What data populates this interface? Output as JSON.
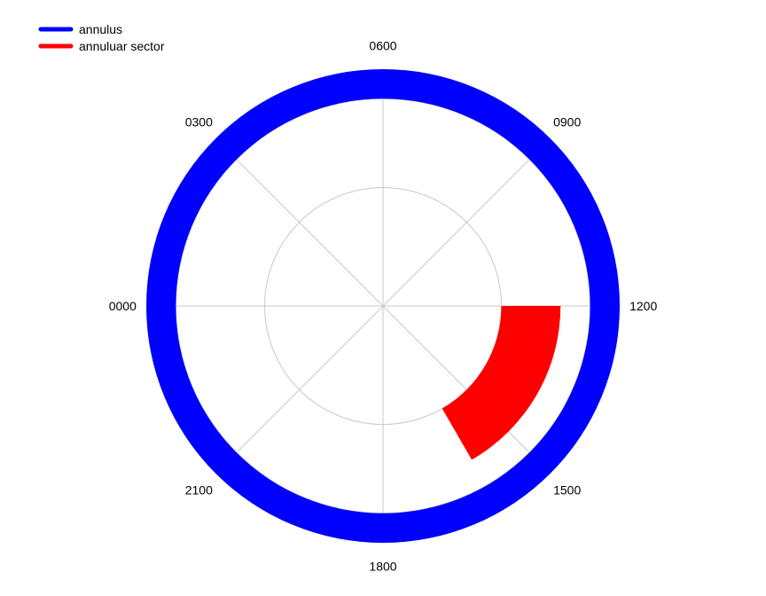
{
  "chart_data": {
    "type": "polar",
    "angular_axis": {
      "tick_labels": [
        "0000",
        "0300",
        "0600",
        "0900",
        "1200",
        "1500",
        "1800",
        "2100"
      ],
      "start_label_direction": "left",
      "direction": "clockwise",
      "range": [
        0,
        2400
      ]
    },
    "radial_axis": {
      "range": [
        0,
        1
      ],
      "grid_circles": [
        0.5
      ],
      "outer_circle": 0.875,
      "tick_labels_shown": false
    },
    "series": [
      {
        "name": "annulus",
        "shape": "annulus",
        "r_inner": 0.875,
        "r_outer": 1.0,
        "theta_start": 0,
        "theta_end": 2400,
        "color": "#0000ff"
      },
      {
        "name": "annuluar sector",
        "shape": "annular_sector",
        "r_inner": 0.5,
        "r_outer": 0.75,
        "theta_start": 1200,
        "theta_end": 1600,
        "color": "#ff0000"
      }
    ],
    "legend": {
      "placement": "top-left",
      "entries": [
        "annulus",
        "annuluar sector"
      ]
    },
    "grid": true
  }
}
